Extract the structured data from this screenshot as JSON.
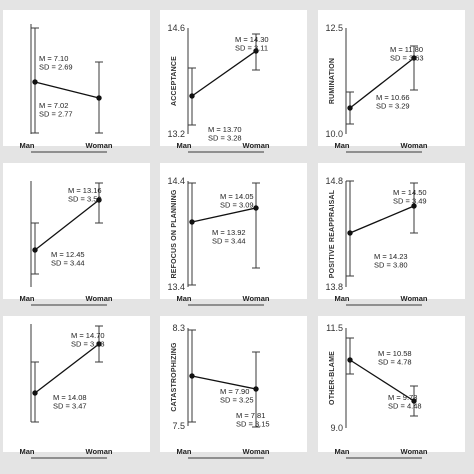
{
  "colors": {
    "background": "#e4e4e4",
    "panel": "#ffffff",
    "ink": "#111111"
  },
  "chart_data": [
    {
      "type": "line",
      "ylabel": "",
      "ylim": [
        null,
        null
      ],
      "ytick_top": "",
      "ytick_bottom": "",
      "categories": [
        "Man",
        "Woman"
      ],
      "values": [
        7.1,
        7.02
      ],
      "labels": [
        [
          "M = 7.10",
          "SD = 2.69"
        ],
        [
          "M = 7.02",
          "SD = 2.77"
        ]
      ]
    },
    {
      "type": "line",
      "ylabel": "ACCEPTANCE",
      "ylim": [
        13.2,
        14.6
      ],
      "ytick_top": "14.6",
      "ytick_bottom": "13.2",
      "categories": [
        "Man",
        "Woman"
      ],
      "values": [
        13.7,
        14.3
      ],
      "labels": [
        [
          "M = 13.70",
          "SD = 3.28"
        ],
        [
          "M = 14.30",
          "SD = 3.11"
        ]
      ]
    },
    {
      "type": "line",
      "ylabel": "RUMINATION",
      "ylim": [
        10.0,
        12.5
      ],
      "ytick_top": "12.5",
      "ytick_bottom": "10.0",
      "categories": [
        "Man",
        "Woman"
      ],
      "values": [
        10.66,
        11.8
      ],
      "labels": [
        [
          "M = 10.66",
          "SD = 3.29"
        ],
        [
          "M = 11.80",
          "SD = 3.63"
        ]
      ]
    },
    {
      "type": "line",
      "ylabel": "",
      "ylim": [
        null,
        null
      ],
      "ytick_top": "",
      "ytick_bottom": "",
      "categories": [
        "Man",
        "Woman"
      ],
      "values": [
        12.45,
        13.16
      ],
      "labels": [
        [
          "M = 12.45",
          "SD = 3.44"
        ],
        [
          "M = 13.16",
          "SD = 3.59"
        ]
      ]
    },
    {
      "type": "line",
      "ylabel": "REFOCUS ON PLANNING",
      "ylim": [
        13.4,
        14.4
      ],
      "ytick_top": "14.4",
      "ytick_bottom": "13.4",
      "categories": [
        "Man",
        "Woman"
      ],
      "values": [
        13.92,
        14.05
      ],
      "labels": [
        [
          "M = 13.92",
          "SD = 3.44"
        ],
        [
          "M = 14.05",
          "SD = 3.09"
        ]
      ]
    },
    {
      "type": "line",
      "ylabel": "POSITIVE REAPPRAISAL",
      "ylim": [
        13.8,
        14.8
      ],
      "ytick_top": "14.8",
      "ytick_bottom": "13.8",
      "categories": [
        "Man",
        "Woman"
      ],
      "values": [
        14.23,
        14.5
      ],
      "labels": [
        [
          "M = 14.23",
          "SD = 3.80"
        ],
        [
          "M = 14.50",
          "SD = 3.49"
        ]
      ]
    },
    {
      "type": "line",
      "ylabel": "",
      "ylim": [
        null,
        null
      ],
      "ytick_top": "",
      "ytick_bottom": "",
      "categories": [
        "Man",
        "Woman"
      ],
      "values": [
        14.08,
        14.7
      ],
      "labels": [
        [
          "M = 14.08",
          "SD = 3.47"
        ],
        [
          "M = 14.70",
          "SD = 3.03"
        ]
      ]
    },
    {
      "type": "line",
      "ylabel": "CATASTROPHIZING",
      "ylim": [
        7.5,
        8.3
      ],
      "ytick_top": "8.3",
      "ytick_bottom": "7.5",
      "categories": [
        "Man",
        "Woman"
      ],
      "values": [
        7.9,
        7.81
      ],
      "labels": [
        [
          "M = 7.90",
          "SD = 3.25"
        ],
        [
          "M = 7.81",
          "SD = 3.15"
        ]
      ]
    },
    {
      "type": "line",
      "ylabel": "OTHER-BLAME",
      "ylim": [
        9.0,
        11.5
      ],
      "ytick_top": "11.5",
      "ytick_bottom": "9.0",
      "categories": [
        "Man",
        "Woman"
      ],
      "values": [
        10.58,
        9.73
      ],
      "labels": [
        [
          "M = 10.58",
          "SD = 4.78"
        ],
        [
          "M = 9.73",
          "SD = 4.48"
        ]
      ]
    }
  ]
}
